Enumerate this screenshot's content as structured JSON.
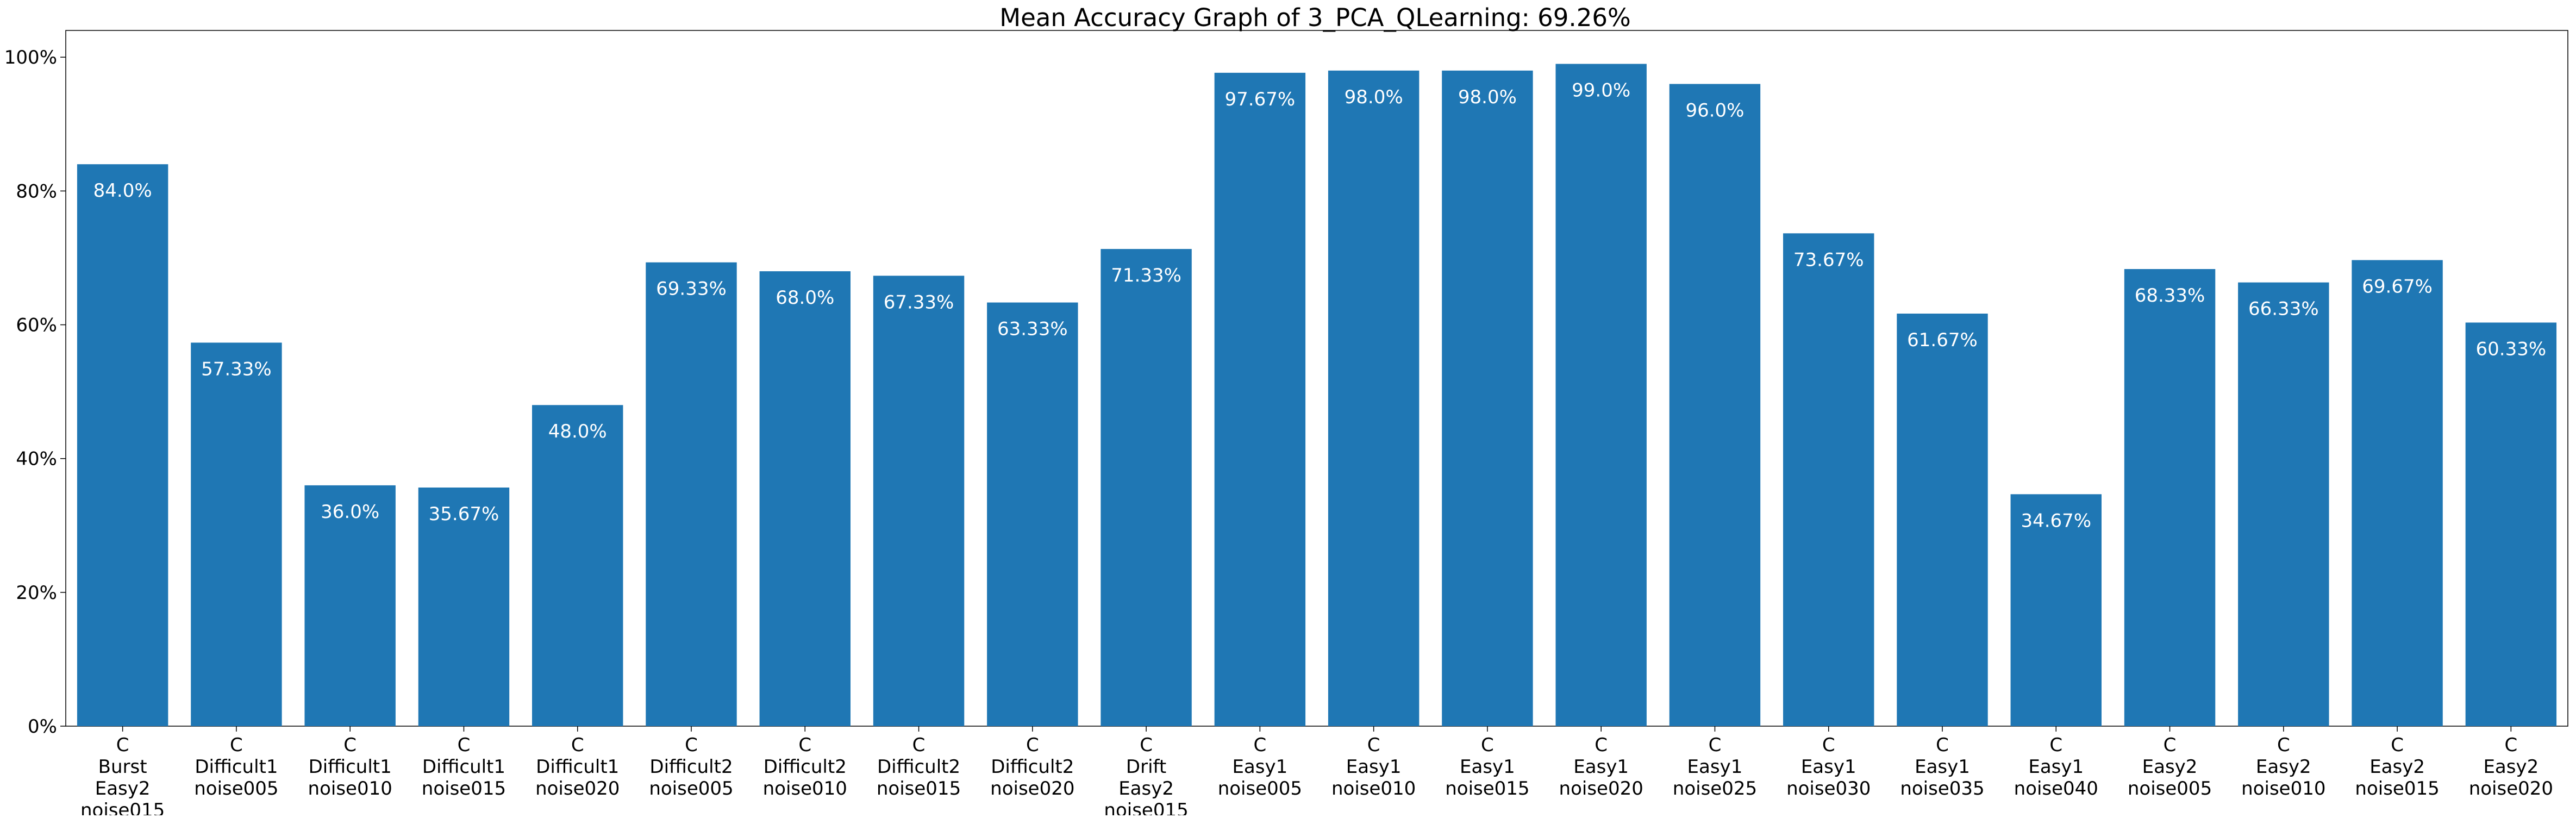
{
  "chart_data": {
    "type": "bar",
    "title": "Mean Accuracy Graph of 3_PCA_QLearning: 69.26%",
    "xlabel": "",
    "ylabel": "",
    "ylim": [
      0,
      104
    ],
    "yticks": [
      {
        "value": 0,
        "label": "0%"
      },
      {
        "value": 20,
        "label": "20%"
      },
      {
        "value": 40,
        "label": "40%"
      },
      {
        "value": 60,
        "label": "60%"
      },
      {
        "value": 80,
        "label": "80%"
      },
      {
        "value": 100,
        "label": "100%"
      }
    ],
    "grid": false,
    "bar_color": "#1f77b4",
    "bar_label_color": "#ffffff",
    "categories": [
      [
        "C",
        "Burst",
        "Easy2",
        "noise015"
      ],
      [
        "C",
        "Difficult1",
        "noise005"
      ],
      [
        "C",
        "Difficult1",
        "noise010"
      ],
      [
        "C",
        "Difficult1",
        "noise015"
      ],
      [
        "C",
        "Difficult1",
        "noise020"
      ],
      [
        "C",
        "Difficult2",
        "noise005"
      ],
      [
        "C",
        "Difficult2",
        "noise010"
      ],
      [
        "C",
        "Difficult2",
        "noise015"
      ],
      [
        "C",
        "Difficult2",
        "noise020"
      ],
      [
        "C",
        "Drift",
        "Easy2",
        "noise015"
      ],
      [
        "C",
        "Easy1",
        "noise005"
      ],
      [
        "C",
        "Easy1",
        "noise010"
      ],
      [
        "C",
        "Easy1",
        "noise015"
      ],
      [
        "C",
        "Easy1",
        "noise020"
      ],
      [
        "C",
        "Easy1",
        "noise025"
      ],
      [
        "C",
        "Easy1",
        "noise030"
      ],
      [
        "C",
        "Easy1",
        "noise035"
      ],
      [
        "C",
        "Easy1",
        "noise040"
      ],
      [
        "C",
        "Easy2",
        "noise005"
      ],
      [
        "C",
        "Easy2",
        "noise010"
      ],
      [
        "C",
        "Easy2",
        "noise015"
      ],
      [
        "C",
        "Easy2",
        "noise020"
      ]
    ],
    "values": [
      84.0,
      57.33,
      36.0,
      35.67,
      48.0,
      69.33,
      68.0,
      67.33,
      63.33,
      71.33,
      97.67,
      98.0,
      98.0,
      99.0,
      96.0,
      73.67,
      61.67,
      34.67,
      68.33,
      66.33,
      69.67,
      60.33
    ],
    "data_labels": [
      "84.0%",
      "57.33%",
      "36.0%",
      "35.67%",
      "48.0%",
      "69.33%",
      "68.0%",
      "67.33%",
      "63.33%",
      "71.33%",
      "97.67%",
      "98.0%",
      "98.0%",
      "99.0%",
      "96.0%",
      "73.67%",
      "61.67%",
      "34.67%",
      "68.33%",
      "66.33%",
      "69.67%",
      "60.33%"
    ]
  }
}
